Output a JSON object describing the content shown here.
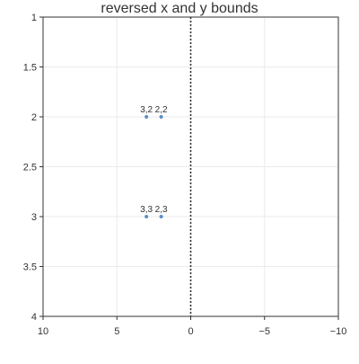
{
  "chart_data": {
    "type": "scatter",
    "title": "reversed x and y bounds",
    "xlabel": "",
    "ylabel": "",
    "xlim": [
      10,
      -10
    ],
    "ylim": [
      1,
      4
    ],
    "x_reversed": true,
    "y_reversed": true,
    "x_ticks": [
      10,
      5,
      0,
      -5,
      -10
    ],
    "x_tick_labels": [
      "10",
      "5",
      "0",
      "−5",
      "−10"
    ],
    "y_ticks": [
      1,
      1.5,
      2,
      2.5,
      3,
      3.5,
      4
    ],
    "y_tick_labels": [
      "1",
      "1.5",
      "2",
      "2.5",
      "3",
      "3.5",
      "4"
    ],
    "grid": true,
    "reference_line": {
      "axis": "x",
      "value": 0,
      "style": "dotted",
      "color": "#333333"
    },
    "series": [
      {
        "color": "#5b8fc7",
        "points": [
          {
            "x": 3,
            "y": 2,
            "label": "3,2"
          },
          {
            "x": 2,
            "y": 2,
            "label": "2,2"
          },
          {
            "x": 3,
            "y": 3,
            "label": "3,3"
          },
          {
            "x": 2,
            "y": 3,
            "label": "2,3"
          }
        ]
      }
    ]
  }
}
